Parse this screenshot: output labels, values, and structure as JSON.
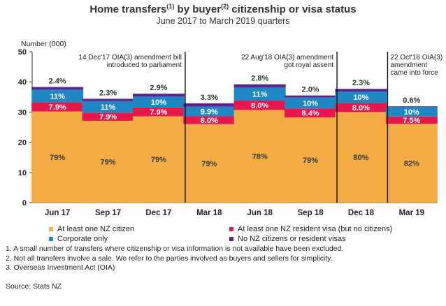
{
  "title": {
    "main_before": "Home transfers",
    "sup1": "(1)",
    "main_middle": " by buyer",
    "sup2": "(2)",
    "main_after": " citizenship or visa status"
  },
  "subtitle": "June 2017 to March 2019 quarters",
  "colors": {
    "citizen": "#F5AB44",
    "resident_visa": "#E8174B",
    "corporate": "#1F87C4",
    "no_nz": "#5A2590"
  },
  "annotations": [
    {
      "after_category": "Dec 17",
      "lines": [
        "14 Dec'17 OIA(3) amendment bill",
        "introduced to parliament"
      ],
      "align": "end"
    },
    {
      "after_category": "Sep 18",
      "lines": [
        "22 Aug'18 OIA(3) amendment",
        "got royal assent"
      ],
      "align": "end"
    },
    {
      "after_category": "Dec 18",
      "lines": [
        "22 Oct'18 OIA(3)",
        "amendment",
        "came into force"
      ],
      "align": "start"
    }
  ],
  "legend": [
    {
      "label": "At least one NZ citizen",
      "color_key": "citizen"
    },
    {
      "label": "At least one NZ resident visa (but no citizens)",
      "color_key": "resident_visa"
    },
    {
      "label": "Corporate only",
      "color_key": "corporate"
    },
    {
      "label": "No NZ citizens or resident visas",
      "color_key": "no_nz"
    }
  ],
  "footnotes": [
    "1. A small number of transfers where citizenship or visa information is not available have been excluded.",
    "2. Not all transfers involve a sale. We refer to the parties involved as buyers and sellers for simplicity.",
    "3. Overseas Investment Act (OIA)"
  ],
  "source": "Source: Stats NZ",
  "chart_data": {
    "type": "bar",
    "stacked": true,
    "title": "Home transfers(1) by buyer(2) citizenship or visa status",
    "subtitle": "June 2017 to March 2019 quarters",
    "ylabel": "Number (000)",
    "ylim": [
      0,
      50
    ],
    "yticks": [
      0,
      10,
      20,
      30,
      40,
      50
    ],
    "grid": false,
    "legend_position": "bottom",
    "categories": [
      "Jun 17",
      "Sep 17",
      "Dec 17",
      "Mar 18",
      "Jun 18",
      "Sep 18",
      "Dec 18",
      "Mar 19"
    ],
    "series": [
      {
        "name": "At least one NZ citizen",
        "color": "#F5AB44",
        "values": [
          30.2,
          27.1,
          28.6,
          26.0,
          30.7,
          28.2,
          30.0,
          26.1
        ],
        "labels": [
          "79%",
          "79%",
          "79%",
          "79%",
          "78%",
          "79%",
          "80%",
          "82%"
        ]
      },
      {
        "name": "At least one NZ resident visa (but no citizens)",
        "color": "#E8174B",
        "values": [
          3.0,
          2.7,
          2.9,
          2.6,
          3.1,
          3.0,
          3.0,
          2.4
        ],
        "labels": [
          "7.9%",
          "7.9%",
          "7.9%",
          "8.0%",
          "8.0%",
          "8.4%",
          "8.0%",
          "7.5%"
        ]
      },
      {
        "name": "Corporate only",
        "color": "#1F87C4",
        "values": [
          4.2,
          3.8,
          3.6,
          3.2,
          4.3,
          3.6,
          3.8,
          3.2
        ],
        "labels": [
          "11%",
          "11%",
          "10%",
          "9.9%",
          "11%",
          "10%",
          "10%",
          "10%"
        ]
      },
      {
        "name": "No NZ citizens or resident visas",
        "color": "#5A2590",
        "values": [
          0.9,
          0.8,
          1.0,
          1.1,
          1.1,
          0.7,
          0.9,
          0.2
        ],
        "labels": [
          "2.4%",
          "2.3%",
          "2.9%",
          "3.3%",
          "2.8%",
          "2.0%",
          "2.3%",
          "0.6%"
        ]
      }
    ]
  }
}
